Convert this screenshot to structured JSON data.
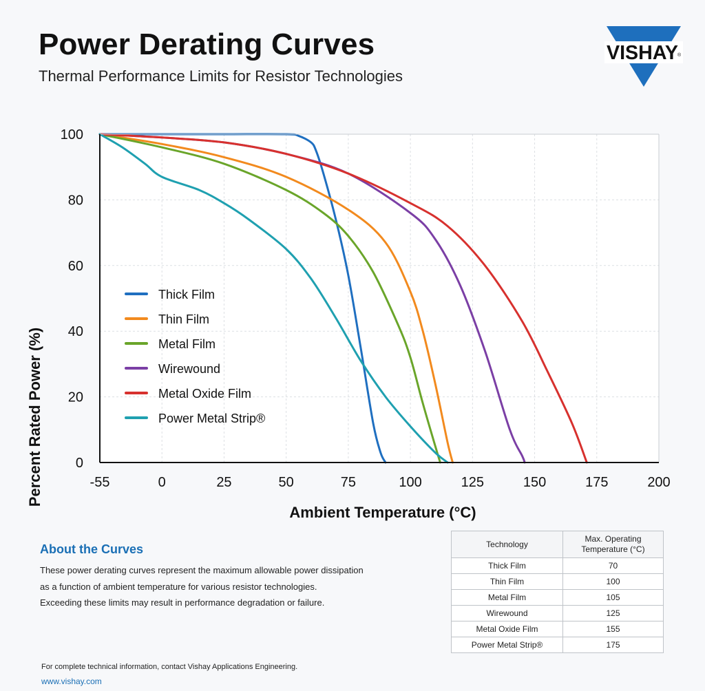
{
  "header": {
    "title": "Power Derating Curves",
    "subtitle": "Thermal Performance Limits for Resistor Technologies",
    "logo_text": "VISHAY",
    "logo_color": "#1e6fbd"
  },
  "chart_data": {
    "type": "line",
    "xlabel": "Ambient Temperature (°C)",
    "ylabel": "Percent Rated Power (%)",
    "x_ticks": [
      "-55",
      "0",
      "25",
      "50",
      "75",
      "100",
      "125",
      "150",
      "175",
      "200"
    ],
    "y_ticks": [
      "0",
      "20",
      "40",
      "60",
      "80",
      "100"
    ],
    "ylim": [
      0,
      100
    ],
    "grid": true,
    "legend_position": "left-middle",
    "series": [
      {
        "name": "Thick Film",
        "color": "#1f6fc0",
        "x": [
          -55,
          0,
          25,
          50,
          55,
          60,
          62,
          65,
          70,
          75,
          80,
          85,
          88,
          90
        ],
        "y": [
          100,
          100,
          100,
          100,
          99.5,
          97.5,
          95,
          88,
          74,
          57,
          35,
          12,
          3,
          0
        ]
      },
      {
        "name": "Thin Film",
        "color": "#f28a1e",
        "x": [
          -55,
          0,
          25,
          50,
          75,
          90,
          100,
          105,
          110,
          115,
          117
        ],
        "y": [
          100,
          97,
          93,
          87,
          77,
          67,
          52,
          40,
          24,
          6,
          0
        ]
      },
      {
        "name": "Metal Film",
        "color": "#6aa52a",
        "x": [
          -55,
          0,
          25,
          50,
          65,
          75,
          85,
          95,
          100,
          105,
          110,
          112
        ],
        "y": [
          100,
          96,
          91,
          83,
          76,
          69,
          58,
          42,
          32,
          18,
          5,
          0
        ]
      },
      {
        "name": "Wirewound",
        "color": "#7b3fa5",
        "x": [
          -55,
          0,
          25,
          50,
          75,
          100,
          110,
          120,
          130,
          140,
          145,
          146
        ],
        "y": [
          100,
          99,
          97.5,
          94,
          88,
          76,
          68,
          54,
          34,
          10,
          2,
          0
        ]
      },
      {
        "name": "Metal Oxide Film",
        "color": "#d7312e",
        "x": [
          -55,
          0,
          25,
          50,
          75,
          100,
          115,
          130,
          145,
          155,
          165,
          171
        ],
        "y": [
          100,
          99,
          97.5,
          94,
          88,
          79,
          72,
          60,
          43,
          28,
          12,
          0
        ]
      },
      {
        "name": "Power Metal Strip®",
        "color": "#1fa0b0",
        "x": [
          -55,
          -35,
          -15,
          0,
          15,
          25,
          35,
          50,
          60,
          70,
          80,
          90,
          100,
          110,
          115
        ],
        "y": [
          100,
          96,
          91,
          87,
          83,
          79,
          74,
          65,
          56,
          44,
          31,
          20,
          11,
          3,
          0
        ]
      }
    ]
  },
  "about": {
    "title": "About the Curves",
    "lines": [
      "These power derating curves represent the maximum allowable power dissipation",
      "as a function of ambient temperature for various resistor technologies.",
      "Exceeding these limits may result in performance degradation or failure."
    ]
  },
  "table": {
    "headers": [
      "Technology",
      "Max. Operating",
      "Temperature (°C)"
    ],
    "rows": [
      [
        "Thick Film",
        "70"
      ],
      [
        "Thin Film",
        "100"
      ],
      [
        "Metal Film",
        "105"
      ],
      [
        "Wirewound",
        "125"
      ],
      [
        "Metal Oxide Film",
        "155"
      ],
      [
        "Power Metal Strip®",
        "175"
      ]
    ]
  },
  "footer": {
    "note": "For complete technical information, contact Vishay Applications Engineering.",
    "url": "www.vishay.com"
  }
}
